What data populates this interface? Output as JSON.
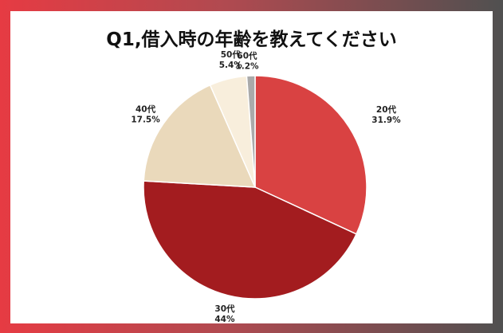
{
  "chart_data": {
    "type": "pie",
    "title": "Q1,借入時の年齢を教えてください",
    "start_angle_deg": 0,
    "direction": "clockwise",
    "slices": [
      {
        "label": "20代",
        "value": 31.9,
        "value_label": "31.9%",
        "color": "#d94242"
      },
      {
        "label": "30代",
        "value": 44.0,
        "value_label": "44%",
        "color": "#a31c1f"
      },
      {
        "label": "40代",
        "value": 17.5,
        "value_label": "17.5%",
        "color": "#ead9bb"
      },
      {
        "label": "50代",
        "value": 5.4,
        "value_label": "5.4%",
        "color": "#f8eedc"
      },
      {
        "label": "60代",
        "value": 1.2,
        "value_label": "1.2%",
        "color": "#aaaaaa"
      }
    ]
  }
}
